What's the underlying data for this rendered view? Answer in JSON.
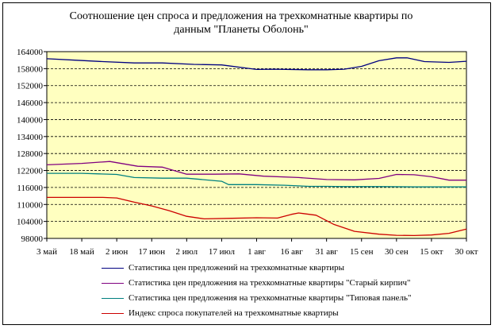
{
  "chart_data": {
    "type": "line",
    "title": "Соотношение цен спроса и предложения на трехкомнатные квартиры     по\nданным \"Планеты Оболонь\"",
    "categories": [
      "3 май",
      "18 май",
      "2 июн",
      "17 июн",
      "2 июл",
      "17 июл",
      "1 авг",
      "16 авг",
      "31 авг",
      "15 сен",
      "30 сен",
      "15 окт",
      "30 окт"
    ],
    "ylim": [
      98000,
      164000
    ],
    "yticks": [
      98000,
      104000,
      110000,
      116000,
      122000,
      128000,
      134000,
      140000,
      146000,
      152000,
      158000,
      164000
    ],
    "grid": true,
    "background": "#ffffc0",
    "legend_position": "bottom",
    "series": [
      {
        "name": "Статистика цен предложений на трехкомнатные квартиры",
        "color": "#000080",
        "x": [
          0,
          0.8,
          1.6,
          2.5,
          3.3,
          4.2,
          5,
          6,
          6.5,
          7.5,
          8,
          8.5,
          9,
          9.5,
          10,
          10.3,
          10.8,
          11.5,
          12
        ],
        "values": [
          161500,
          161000,
          160500,
          160000,
          160000,
          159500,
          159300,
          157700,
          157800,
          157600,
          157600,
          157800,
          158800,
          160800,
          161800,
          161800,
          160500,
          160200,
          160600
        ]
      },
      {
        "name": "Статистика цен предложения на трехкомнатные квартиры \"Старый кирпич\"",
        "color": "#800080",
        "x": [
          0,
          1,
          1.8,
          2.6,
          3.3,
          4,
          4.8,
          5.5,
          6.2,
          7.2,
          8,
          8.8,
          9.5,
          10,
          10.5,
          11,
          11.5,
          12
        ],
        "values": [
          124000,
          124500,
          125200,
          123500,
          123200,
          120700,
          120700,
          120800,
          120000,
          119500,
          118800,
          118700,
          119200,
          120600,
          120500,
          119800,
          118600,
          118600
        ]
      },
      {
        "name": "Статистика цен предложения на трехкомнатные квартиры \"Типовая панель\"",
        "color": "#008080",
        "x": [
          0,
          1,
          1.5,
          2,
          2.5,
          3.3,
          4,
          5,
          5.2,
          6,
          6.8,
          7.5,
          8,
          8.5,
          9.5,
          10.5,
          11.5,
          12
        ],
        "values": [
          121000,
          121000,
          120800,
          120600,
          119500,
          119300,
          119300,
          118200,
          117000,
          117000,
          116800,
          116400,
          116400,
          116300,
          116300,
          116200,
          116200,
          116200
        ]
      },
      {
        "name": "Индекс спроса покупателей  на трехкомнатные квартиры",
        "color": "#cc0000",
        "x": [
          0,
          0.8,
          1.6,
          2,
          2.5,
          3,
          3.5,
          4,
          4.5,
          5.3,
          6,
          6.6,
          7,
          7.2,
          7.7,
          8.2,
          8.8,
          9.5,
          10,
          10.5,
          11,
          11.5,
          12
        ],
        "values": [
          112500,
          112500,
          112500,
          112300,
          110800,
          109500,
          107800,
          105800,
          104900,
          105100,
          105300,
          105200,
          106500,
          107000,
          106200,
          103000,
          100500,
          99500,
          99100,
          99000,
          99200,
          99800,
          101300
        ]
      }
    ]
  }
}
